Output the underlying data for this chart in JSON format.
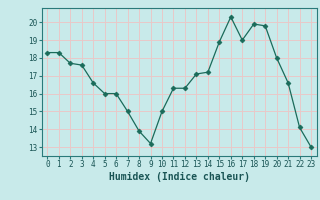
{
  "xlabel": "Humidex (Indice chaleur)",
  "ylabel": "",
  "x": [
    0,
    1,
    2,
    3,
    4,
    5,
    6,
    7,
    8,
    9,
    10,
    11,
    12,
    13,
    14,
    15,
    16,
    17,
    18,
    19,
    20,
    21,
    22,
    23
  ],
  "y": [
    18.3,
    18.3,
    17.7,
    17.6,
    16.6,
    16.0,
    16.0,
    15.0,
    13.9,
    13.2,
    15.0,
    16.3,
    16.3,
    17.1,
    17.2,
    18.9,
    20.3,
    19.0,
    19.9,
    19.8,
    18.0,
    16.6,
    14.1,
    13.0
  ],
  "line_color": "#1a6b5a",
  "marker": "D",
  "marker_size": 2.5,
  "bg_color": "#c8eaea",
  "grid_color": "#e8c8c8",
  "ylim": [
    12.5,
    20.8
  ],
  "xlim": [
    -0.5,
    23.5
  ],
  "yticks": [
    13,
    14,
    15,
    16,
    17,
    18,
    19,
    20
  ],
  "xticks": [
    0,
    1,
    2,
    3,
    4,
    5,
    6,
    7,
    8,
    9,
    10,
    11,
    12,
    13,
    14,
    15,
    16,
    17,
    18,
    19,
    20,
    21,
    22,
    23
  ],
  "tick_color": "#2a7a7a",
  "label_color": "#1a5555",
  "xlabel_fontsize": 7,
  "tick_fontsize": 5.5
}
